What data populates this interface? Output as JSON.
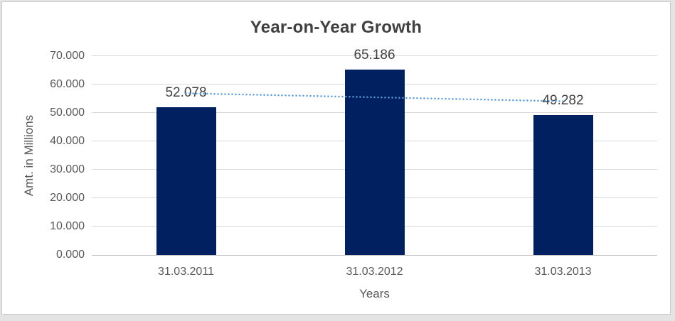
{
  "chart_data": {
    "type": "bar",
    "title": "Year-on-Year Growth",
    "xlabel": "Years",
    "ylabel": "Amt. in Millions",
    "categories": [
      "31.03.2011",
      "31.03.2012",
      "31.03.2013"
    ],
    "values": [
      52.078,
      65.186,
      49.282
    ],
    "data_labels": [
      "52.078",
      "65.186",
      "49.282"
    ],
    "ylim": [
      0,
      70
    ],
    "yticks": [
      "0.000",
      "10.000",
      "20.000",
      "30.000",
      "40.000",
      "50.000",
      "60.000",
      "70.000"
    ],
    "grid": true,
    "legend_position": "none",
    "colors": {
      "bar": "#002060",
      "gridline": "#D9D9D9",
      "axis_line": "#BFBFBF",
      "title_text": "#404040",
      "data_label_text": "#404040",
      "tick_text": "#595959",
      "surface": "#FFFFFF",
      "page_background": "#E4E4E4",
      "surface_border": "#C9C9C9"
    },
    "trendline": {
      "type": "linear",
      "style": "dotted",
      "color": "#5B9BD5",
      "start_value": 56.9,
      "end_value": 54.1
    }
  }
}
